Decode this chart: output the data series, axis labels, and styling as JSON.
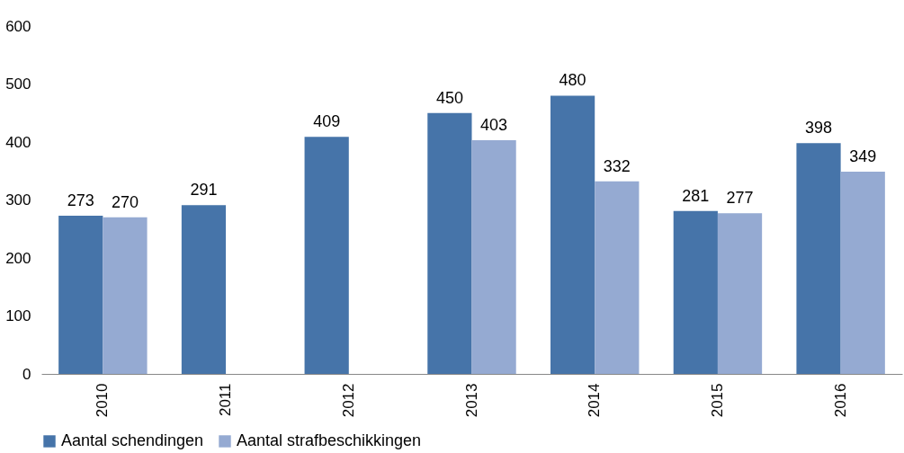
{
  "chart_data": {
    "type": "bar",
    "categories": [
      "2010",
      "2011",
      "2012",
      "2013",
      "2014",
      "2015",
      "2016"
    ],
    "series": [
      {
        "name": "Aantal schendingen",
        "color": "#4674a9",
        "values": [
          273,
          291,
          409,
          450,
          480,
          281,
          398
        ]
      },
      {
        "name": "Aantal strafbeschikkingen",
        "color": "#95aad2",
        "values": [
          270,
          null,
          null,
          403,
          332,
          277,
          349
        ]
      }
    ],
    "ylim": [
      0,
      600
    ],
    "yticks": [
      0,
      100,
      200,
      300,
      400,
      500,
      600
    ],
    "grid": false,
    "legend": "bottom",
    "data_labels": true
  }
}
